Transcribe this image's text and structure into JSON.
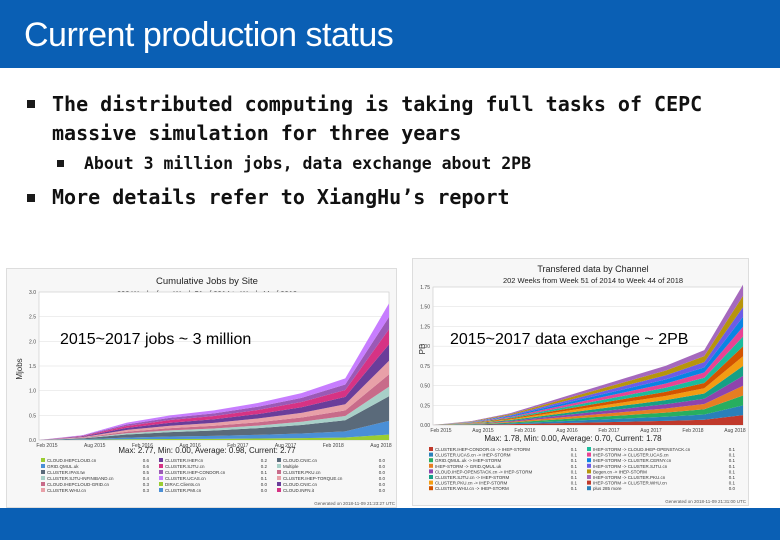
{
  "slide": {
    "title": "Current production status",
    "bullets": [
      {
        "text_line1": "The distributed computing is taking full tasks of CEPC",
        "text_line2": "massive simulation for three years"
      },
      {
        "text": "About 3 million jobs, data exchange about 2PB"
      },
      {
        "text": "More details refer to XiangHu’s report"
      }
    ],
    "colors": {
      "title_bar": "#0a5fb4",
      "footer_bar": "#0a5fb4"
    }
  },
  "left_chart": {
    "title": "Cumulative Jobs by Site",
    "subtitle": "202 Weeks from Week 51 of 2014 to Week 44 of 2018",
    "ylabel": "Mjobs",
    "overlay_label": "2015~2017 jobs ~ 3 million",
    "summary": "Max: 2.77, Min: 0.00, Average: 0.98, Current: 2.77",
    "generated": "Generated on 2018-11-09 21:23:27 UTC",
    "legend_col1": [
      "CLOUD.IHEPCLOUD.cn",
      "GRID.QMUL.uk",
      "CLUSTER.IPAS.tw",
      "CLUSTER.SJTU-INFINIBAND.cn",
      "CLOUD.IHEPCLOUD-GRID.cn",
      "CLUSTER.WHU.cn"
    ],
    "legend_col2": [
      "CLUSTER.IHEP.cn",
      "CLUSTER.SJTU.cn",
      "CLUSTER.IHEP-CONDOR.cn",
      "CLUSTER.UCAS.cn",
      "DIRAC.Clients.cn",
      "CLUSTER.PMI.cn"
    ],
    "legend_col3": [
      "CLOUD.CNIC.cn",
      "Multiple",
      "CLUSTER.PKU.cn",
      "CLUSTER.IHEP-TORQUE.cn",
      "CLOUD.CNIC.cn",
      "CLOUD.INFN.it"
    ],
    "legend_values_col1": [
      "0.6",
      "0.6",
      "0.5",
      "0.4",
      "0.3",
      "0.3"
    ],
    "legend_values_col2": [
      "0.2",
      "0.2",
      "0.1",
      "0.1",
      "0.0",
      "0.0"
    ],
    "legend_values_col3": [
      "0.0",
      "0.0",
      "0.0",
      "0.0",
      "0.0",
      "0.0"
    ],
    "chart_data": {
      "type": "area",
      "x": [
        "Feb 2015",
        "Aug 2015",
        "Feb 2016",
        "Aug 2016",
        "Feb 2017",
        "Aug 2017",
        "Feb 2018",
        "Aug 2018"
      ],
      "ylim": [
        0,
        3.0
      ],
      "yticks": [
        "0.0",
        "0.5",
        "1.0",
        "1.5",
        "2.0",
        "2.5",
        "3.0"
      ],
      "series_total": [
        0.0,
        0.1,
        0.35,
        0.5,
        0.6,
        0.75,
        0.95,
        1.25,
        2.77
      ],
      "series_colors": [
        "#9acd32",
        "#4a8fd6",
        "#5a6a7a",
        "#a8d0c8",
        "#c86b8a",
        "#e8a0a8",
        "#6a3d9a",
        "#d63384",
        "#9b59b6",
        "#c77dff"
      ],
      "series_share": [
        0.04,
        0.1,
        0.18,
        0.07,
        0.09,
        0.1,
        0.12,
        0.11,
        0.09,
        0.1
      ]
    }
  },
  "right_chart": {
    "title": "Transfered data by Channel",
    "subtitle": "202 Weeks from Week 51 of 2014 to Week 44 of 2018",
    "ylabel": "PB",
    "overlay_label": "2015~2017 data exchange ~ 2PB",
    "summary": "Max: 1.78, Min: 0.00, Average: 0.70, Current: 1.78",
    "generated": "Generated on 2018-11-09 21:31:00 UTC",
    "legend_col1": [
      "CLUSTER.IHEP-CONDOR.cn -> IHEP-STORM",
      "CLUSTER.UCAS.cn -> IHEP-STORM",
      "GRID.QMUL.uk -> IHEP-STORM",
      "IHEP-STORM -> GRID.QMUL.uk",
      "CLOUD.IHEP-OPENSTACK.cn -> IHEP-STORM",
      "CLUSTER.SJTU.cn -> IHEP-STORM",
      "CLUSTER.PKU.cn -> IHEP-STORM",
      "CLUSTER.WHU.cn -> IHEP-STORM"
    ],
    "legend_col2": [
      "IHEP-STORM -> CLOUD.IHEP-OPENSTACK.cn",
      "IHEP-STORM -> CLUSTER.UCAS.cn",
      "IHEP-STORM -> CLUSTER.CERNY.cn",
      "IHEP-STORM -> CLUSTER.SJTU.cn",
      "Begen.cn -> IHEP-STORM",
      "IHEP-STORM -> CLUSTER.PKU.cn",
      "IHEP-STORM -> CLUSTER.WHU.cn",
      "plus 285 more"
    ],
    "legend_values_col1": [
      "0.1",
      "0.1",
      "0.1",
      "0.1",
      "0.1",
      "0.1",
      "0.1",
      "0.1"
    ],
    "legend_values_col2": [
      "0.1",
      "0.1",
      "0.1",
      "0.1",
      "0.1",
      "0.1",
      "0.1",
      "0.0"
    ],
    "chart_data": {
      "type": "area",
      "x": [
        "Feb 2015",
        "Aug 2015",
        "Feb 2016",
        "Aug 2016",
        "Feb 2017",
        "Aug 2017",
        "Feb 2018",
        "Aug 2018"
      ],
      "ylim": [
        0,
        1.75
      ],
      "yticks": [
        "0.00",
        "0.25",
        "0.50",
        "0.75",
        "1.00",
        "1.25",
        "1.50",
        "1.75"
      ],
      "series_total": [
        0.0,
        0.05,
        0.15,
        0.3,
        0.45,
        0.6,
        0.75,
        0.95,
        1.78
      ],
      "series_colors": [
        "#c0392b",
        "#2980b9",
        "#27ae60",
        "#e67e22",
        "#8e44ad",
        "#16a085",
        "#f39c12",
        "#d35400",
        "#1abc9c",
        "#e84393",
        "#0984e3",
        "#6c5ce7",
        "#b7950b",
        "#a569bd"
      ],
      "series_share": [
        0.07,
        0.07,
        0.07,
        0.07,
        0.07,
        0.07,
        0.07,
        0.07,
        0.07,
        0.07,
        0.07,
        0.07,
        0.08,
        0.08
      ]
    }
  }
}
